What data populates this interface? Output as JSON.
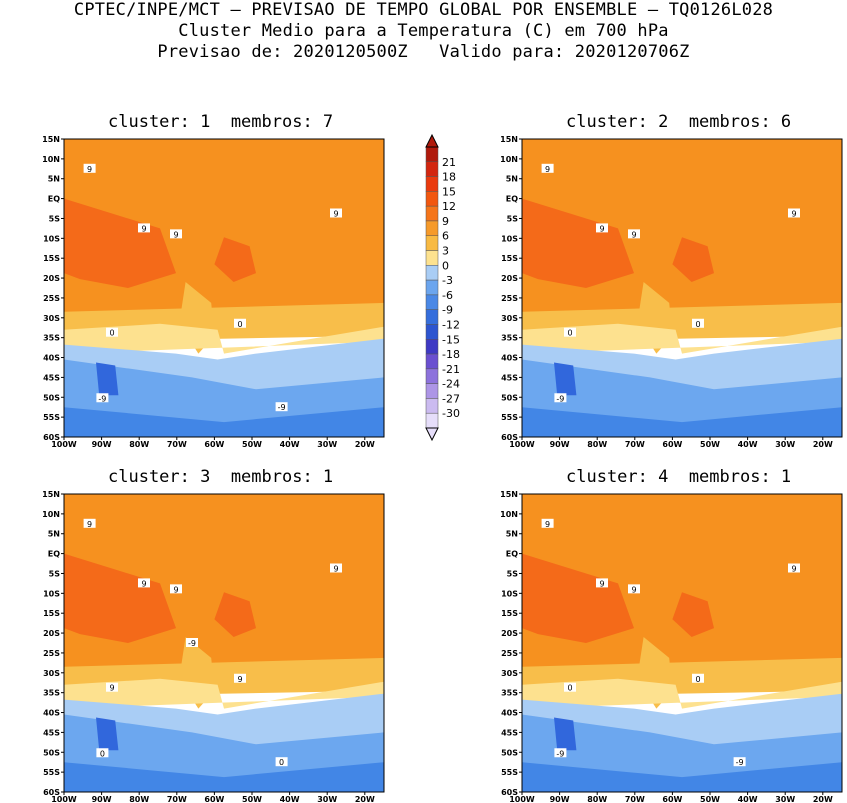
{
  "header": {
    "line1": "CPTEC/INPE/MCT — PREVISAO DE TEMPO GLOBAL POR ENSEMBLE — TQ0126L028",
    "line2": "Cluster Medio para a Temperatura (C) em 700 hPa",
    "line3": "Previsao de: 2020120500Z   Valido para: 2020120706Z"
  },
  "panels": [
    {
      "title": "cluster: 1  membros: 7",
      "contour_labels": [
        "9",
        "9",
        "9",
        "9",
        "0",
        "0",
        "-9",
        "-9"
      ]
    },
    {
      "title": "cluster: 2  membros: 6",
      "contour_labels": [
        "9",
        "9",
        "9",
        "9",
        "0",
        "0",
        "-9"
      ]
    },
    {
      "title": "cluster: 3  membros: 1",
      "contour_labels": [
        "9",
        "9",
        "9",
        "9",
        "9",
        "9",
        "0",
        "0",
        "-9"
      ]
    },
    {
      "title": "cluster: 4  membros: 1",
      "contour_labels": [
        "9",
        "9",
        "9",
        "9",
        "0",
        "0",
        "-9",
        "-9"
      ]
    }
  ],
  "axes": {
    "lat_ticks": [
      "15N",
      "10N",
      "5N",
      "EQ",
      "5S",
      "10S",
      "15S",
      "20S",
      "25S",
      "30S",
      "35S",
      "40S",
      "45S",
      "50S",
      "55S",
      "60S"
    ],
    "lon_ticks": [
      "100W",
      "90W",
      "80W",
      "70W",
      "60W",
      "50W",
      "40W",
      "30W",
      "20W"
    ]
  },
  "colorbar": {
    "labels": [
      "21",
      "18",
      "15",
      "12",
      "9",
      "6",
      "3",
      "0",
      "-3",
      "-6",
      "-9",
      "-12",
      "-15",
      "-18",
      "-21",
      "-24",
      "-27",
      "-30"
    ],
    "colors": [
      "#b01a0c",
      "#d3260f",
      "#ea3a0e",
      "#f2570f",
      "#f5751a",
      "#f69a2a",
      "#f8ba43",
      "#fde28f",
      "#a9cdf5",
      "#6ba5ee",
      "#4a88e6",
      "#356edc",
      "#2d55d0",
      "#3e39c4",
      "#6a4fd0",
      "#8d72dc",
      "#ad95e6",
      "#cbbbf0",
      "#e6defa"
    ],
    "fill_colors": {
      "t_over_9": "#f46a19",
      "t_3_to_9": "#f6911f",
      "t_0_to_3": "#f8be4a",
      "t_m3_to_0": "#fde18f",
      "t_m6_to_m3": "#a9cdf5",
      "t_m9_to_m6": "#6ca7ef",
      "t_under_m9": "#4286e6",
      "t_deep": "#3167dc",
      "coast": "#9a9a9a"
    }
  }
}
